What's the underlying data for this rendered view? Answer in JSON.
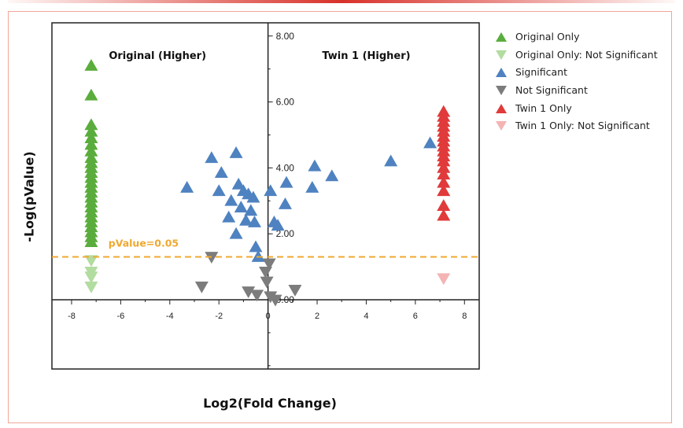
{
  "chart_data": {
    "type": "scatter",
    "subtype": "volcano",
    "xlabel": "Log2(Fold Change)",
    "ylabel": "-Log(pValue)",
    "xlim": [
      -8.8,
      8.6
    ],
    "ylim": [
      -2.1,
      8.4
    ],
    "xticks": [
      -8,
      -6,
      -4,
      -2,
      0,
      2,
      4,
      6,
      8
    ],
    "xtick_labels": [
      "-8",
      "-6",
      "-4",
      "-2",
      "0",
      "2",
      "4",
      "6",
      "8"
    ],
    "yticks": [
      0,
      2,
      4,
      6,
      8
    ],
    "ytick_labels": [
      "0.00",
      "2.00",
      "4.00",
      "6.00",
      "8.00"
    ],
    "region_labels": {
      "left": "Original (Higher)",
      "right": "Twin 1 (Higher)"
    },
    "threshold": {
      "y": 1.3,
      "label": "pValue=0.05",
      "color": "#f0a830"
    },
    "series": [
      {
        "name": "Original Only",
        "shape": "triangle-up",
        "color": "#5aad3c",
        "points": [
          [
            -7.2,
            7.1
          ],
          [
            -7.2,
            6.2
          ],
          [
            -7.2,
            5.3
          ],
          [
            -7.2,
            5.1
          ],
          [
            -7.2,
            4.9
          ],
          [
            -7.2,
            4.7
          ],
          [
            -7.2,
            4.5
          ],
          [
            -7.2,
            4.3
          ],
          [
            -7.2,
            4.15
          ],
          [
            -7.2,
            4.0
          ],
          [
            -7.2,
            3.85
          ],
          [
            -7.2,
            3.7
          ],
          [
            -7.2,
            3.55
          ],
          [
            -7.2,
            3.4
          ],
          [
            -7.2,
            3.25
          ],
          [
            -7.2,
            3.1
          ],
          [
            -7.2,
            2.95
          ],
          [
            -7.2,
            2.8
          ],
          [
            -7.2,
            2.65
          ],
          [
            -7.2,
            2.5
          ],
          [
            -7.2,
            2.35
          ],
          [
            -7.2,
            2.2
          ],
          [
            -7.2,
            2.05
          ],
          [
            -7.2,
            1.9
          ],
          [
            -7.2,
            1.75
          ]
        ]
      },
      {
        "name": "Original Only: Not Significant",
        "shape": "triangle-down",
        "color": "#b2dca0",
        "points": [
          [
            -7.2,
            1.2
          ],
          [
            -7.2,
            0.85
          ],
          [
            -7.2,
            0.7
          ],
          [
            -7.2,
            0.4
          ]
        ]
      },
      {
        "name": "Significant",
        "shape": "triangle-up",
        "color": "#4f82c0",
        "points": [
          [
            -3.3,
            3.4
          ],
          [
            -2.3,
            4.3
          ],
          [
            -1.3,
            4.45
          ],
          [
            -1.9,
            3.85
          ],
          [
            -2.0,
            3.3
          ],
          [
            -1.5,
            3.0
          ],
          [
            -1.0,
            3.3
          ],
          [
            -1.2,
            3.5
          ],
          [
            -0.8,
            3.2
          ],
          [
            -1.6,
            2.5
          ],
          [
            -1.1,
            2.8
          ],
          [
            -0.7,
            2.7
          ],
          [
            -0.55,
            2.35
          ],
          [
            -1.3,
            2.0
          ],
          [
            -0.9,
            2.4
          ],
          [
            -0.6,
            3.1
          ],
          [
            -0.5,
            1.6
          ],
          [
            -0.4,
            1.3
          ],
          [
            0.1,
            3.3
          ],
          [
            0.25,
            2.35
          ],
          [
            0.4,
            2.25
          ],
          [
            0.7,
            2.9
          ],
          [
            0.75,
            3.55
          ],
          [
            1.9,
            4.05
          ],
          [
            1.8,
            3.4
          ],
          [
            2.6,
            3.75
          ],
          [
            5.0,
            4.2
          ],
          [
            6.6,
            4.75
          ]
        ]
      },
      {
        "name": "Not Significant",
        "shape": "triangle-down",
        "color": "#7c7c7c",
        "points": [
          [
            -2.3,
            1.3
          ],
          [
            -2.7,
            0.4
          ],
          [
            -0.8,
            0.25
          ],
          [
            -0.45,
            0.15
          ],
          [
            -0.1,
            0.85
          ],
          [
            -0.05,
            0.55
          ],
          [
            0.05,
            1.1
          ],
          [
            0.1,
            0.1
          ],
          [
            0.3,
            0.0
          ],
          [
            1.1,
            0.3
          ]
        ]
      },
      {
        "name": "Twin 1 Only",
        "shape": "triangle-up",
        "color": "#e03a3a",
        "points": [
          [
            7.15,
            5.7
          ],
          [
            7.15,
            5.55
          ],
          [
            7.15,
            5.4
          ],
          [
            7.15,
            5.25
          ],
          [
            7.15,
            5.1
          ],
          [
            7.15,
            4.95
          ],
          [
            7.15,
            4.8
          ],
          [
            7.15,
            4.65
          ],
          [
            7.15,
            4.5
          ],
          [
            7.15,
            4.35
          ],
          [
            7.15,
            4.2
          ],
          [
            7.15,
            4.0
          ],
          [
            7.15,
            3.8
          ],
          [
            7.15,
            3.55
          ],
          [
            7.15,
            3.3
          ],
          [
            7.15,
            2.85
          ],
          [
            7.15,
            2.55
          ]
        ]
      },
      {
        "name": "Twin 1 Only: Not Significant",
        "shape": "triangle-down",
        "color": "#f4b4b4",
        "points": [
          [
            7.15,
            0.65
          ]
        ]
      }
    ]
  }
}
